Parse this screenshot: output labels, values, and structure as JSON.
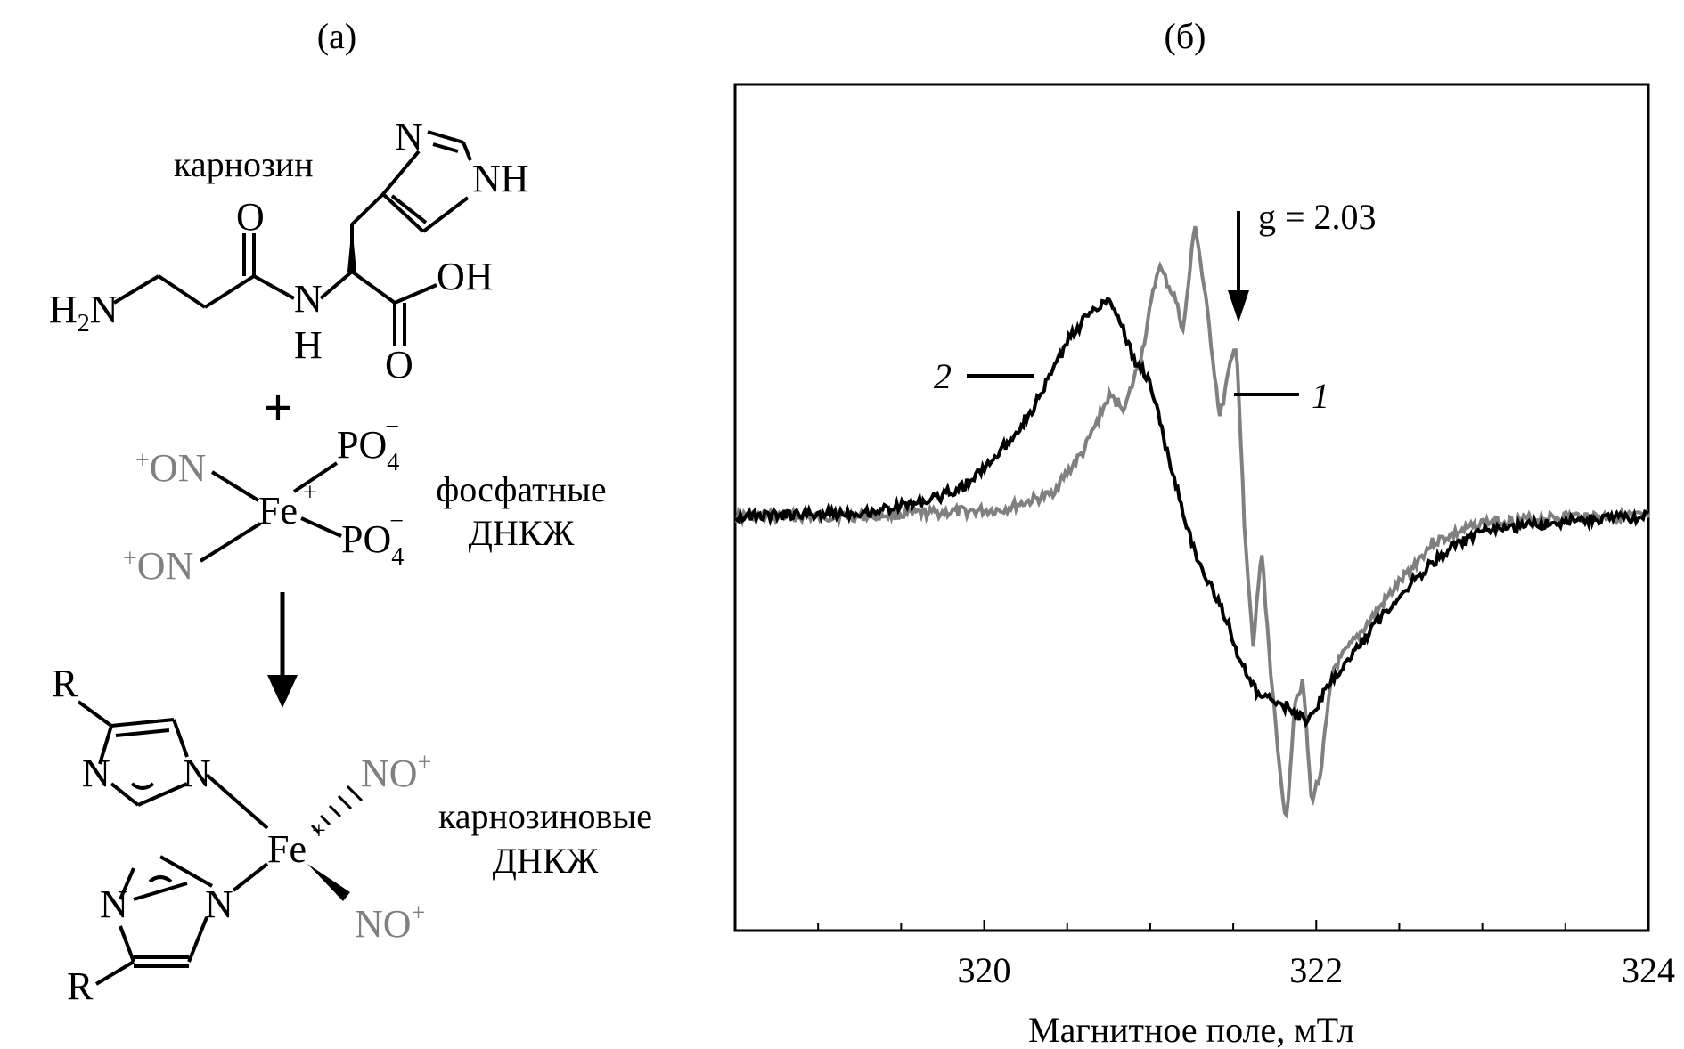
{
  "panel_a": {
    "label": "(а)",
    "carnosine": {
      "name": "карнозин",
      "atoms": {
        "imidazole_n": "N",
        "imidazole_nh": "NH",
        "carbonyl_o": "O",
        "amide_n": "N",
        "amide_h": "H",
        "amine_h2": "H",
        "amine_sub2": "2",
        "amine_n": "N",
        "oh": "OH",
        "acid_o": "O"
      }
    },
    "plus": "+",
    "phosphate_dnic": {
      "name_line1": "фосфатные",
      "name_line2": "ДНКЖ",
      "no_plus": "+",
      "no": "ON",
      "fe": "Fe",
      "fe_charge": "+",
      "po": "PO",
      "po_sub": "4",
      "po_charge": "−"
    },
    "carnosine_dnic": {
      "name_line1": "карнозиновые",
      "name_line2": "ДНКЖ",
      "r": "R",
      "n": "N",
      "fe": "Fe",
      "fe_charge": "+",
      "no": "NO",
      "no_charge": "+"
    }
  },
  "panel_b": {
    "label": "(б)",
    "g_label": "g = 2.03",
    "curve_labels": {
      "curve1": "1",
      "curve2": "2"
    }
  },
  "chart_data": {
    "type": "line",
    "title": "",
    "xlabel": "Магнитное поле, мТл",
    "ylabel": "",
    "xlim": [
      318.5,
      324
    ],
    "ylim": [
      -1.3,
      1.3
    ],
    "xticks": [
      "320",
      "322",
      "324"
    ],
    "grid": false,
    "series": [
      {
        "name": "1",
        "color": "#808080",
        "x": [
          318.5,
          319.2,
          319.8,
          320.1,
          320.4,
          320.6,
          320.75,
          320.85,
          320.95,
          321.05,
          321.15,
          321.2,
          321.27,
          321.35,
          321.42,
          321.47,
          321.52,
          321.57,
          321.62,
          321.67,
          321.72,
          321.77,
          321.82,
          321.87,
          321.92,
          321.97,
          322.02,
          322.1,
          322.25,
          322.45,
          322.7,
          323.0,
          323.5,
          324.0
        ],
        "y": [
          0.0,
          0.0,
          0.02,
          0.03,
          0.1,
          0.3,
          0.55,
          0.5,
          0.75,
          1.15,
          1.0,
          0.85,
          1.35,
          0.9,
          0.45,
          0.65,
          0.8,
          -0.1,
          -0.6,
          -0.15,
          -0.65,
          -1.1,
          -1.4,
          -0.85,
          -0.75,
          -1.3,
          -1.2,
          -0.7,
          -0.55,
          -0.35,
          -0.12,
          -0.03,
          0.0,
          0.0
        ]
      },
      {
        "name": "2",
        "color": "#000000",
        "x": [
          318.5,
          319.3,
          319.7,
          319.9,
          320.1,
          320.3,
          320.5,
          320.65,
          320.75,
          320.82,
          320.9,
          321.0,
          321.1,
          321.2,
          321.28,
          321.35,
          321.45,
          321.55,
          321.65,
          321.75,
          321.85,
          321.95,
          322.05,
          322.2,
          322.4,
          322.6,
          322.8,
          323.0,
          323.5,
          324.0
        ],
        "y": [
          0.0,
          0.02,
          0.08,
          0.15,
          0.3,
          0.5,
          0.8,
          0.95,
          1.0,
          0.9,
          0.72,
          0.62,
          0.3,
          0.02,
          -0.2,
          -0.3,
          -0.45,
          -0.68,
          -0.82,
          -0.85,
          -0.88,
          -0.95,
          -0.8,
          -0.65,
          -0.45,
          -0.28,
          -0.15,
          -0.07,
          -0.02,
          0.0
        ]
      }
    ]
  }
}
